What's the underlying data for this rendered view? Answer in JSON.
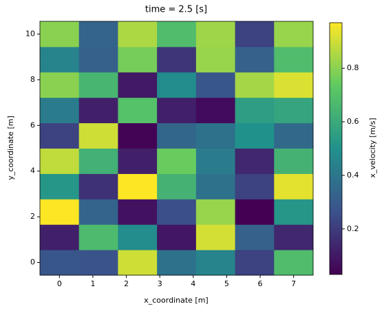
{
  "chart_data": {
    "type": "heatmap",
    "title": "time = 2.5 [s]",
    "x_label": "x_coordinate [m]",
    "y_label": "y_coordinate [m]",
    "colorbar_label": "x_velocity [m/s]",
    "x": [
      0,
      1.167,
      2.333,
      3.5,
      4.667,
      5.833,
      7
    ],
    "y": [
      0,
      1.111,
      2.222,
      3.333,
      4.444,
      5.556,
      6.667,
      7.778,
      8.889,
      10
    ],
    "z": [
      [
        0.28,
        0.27,
        0.9,
        0.38,
        0.45,
        0.22,
        0.68
      ],
      [
        0.12,
        0.67,
        0.48,
        0.09,
        0.91,
        0.32,
        0.14
      ],
      [
        0.97,
        0.33,
        0.08,
        0.26,
        0.82,
        0.03,
        0.52
      ],
      [
        0.52,
        0.17,
        0.97,
        0.64,
        0.38,
        0.22,
        0.93
      ],
      [
        0.88,
        0.63,
        0.12,
        0.75,
        0.42,
        0.14,
        0.64
      ],
      [
        0.22,
        0.9,
        0.04,
        0.34,
        0.38,
        0.5,
        0.35
      ],
      [
        0.42,
        0.12,
        0.7,
        0.12,
        0.06,
        0.55,
        0.58
      ],
      [
        0.8,
        0.65,
        0.1,
        0.48,
        0.28,
        0.84,
        0.92
      ],
      [
        0.45,
        0.32,
        0.77,
        0.18,
        0.82,
        0.32,
        0.68
      ],
      [
        0.8,
        0.33,
        0.85,
        0.68,
        0.83,
        0.22,
        0.82
      ]
    ],
    "xlim": [
      -0.583,
      7.583
    ],
    "ylim": [
      -0.556,
      10.556
    ],
    "xticks": [
      0,
      1,
      2,
      3,
      4,
      5,
      6,
      7
    ],
    "yticks": [
      0,
      2,
      4,
      6,
      8,
      10
    ],
    "clim": [
      0.03,
      0.97
    ],
    "cticks": [
      0.2,
      0.4,
      0.6,
      0.8
    ],
    "colormap": [
      "#440154",
      "#3b528b",
      "#21918c",
      "#5ec962",
      "#fde725"
    ]
  }
}
